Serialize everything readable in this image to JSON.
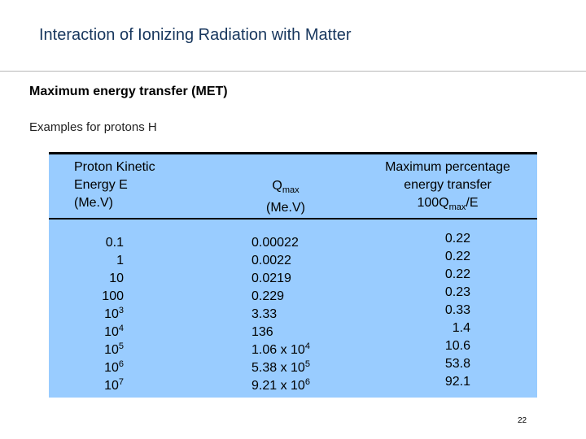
{
  "slide": {
    "title": "Interaction of Ionizing Radiation with Matter",
    "section_heading": "Maximum energy transfer (MET)",
    "subtitle": "Examples for protons H",
    "page_number": "22"
  },
  "table": {
    "header": {
      "col1": [
        "Proton Kinetic",
        "Energy E",
        "(Me.V)"
      ],
      "col2_symbol": "Q",
      "col2_sub": "max",
      "col2_unit": "(Me.V)",
      "col3_line1": "Maximum percentage",
      "col3_line2": "energy transfer",
      "col3_prefix": "100Q",
      "col3_sub": "max",
      "col3_suffix": "/E"
    },
    "rows": [
      {
        "e_base": "0.1",
        "e_exp": "",
        "q_base": "0.00022",
        "q_exp": "",
        "pct": "0.22"
      },
      {
        "e_base": "1",
        "e_exp": "",
        "q_base": "0.0022",
        "q_exp": "",
        "pct": "0.22"
      },
      {
        "e_base": "10",
        "e_exp": "",
        "q_base": "0.0219",
        "q_exp": "",
        "pct": "0.22"
      },
      {
        "e_base": "100",
        "e_exp": "",
        "q_base": "0.229",
        "q_exp": "",
        "pct": "0.23"
      },
      {
        "e_base": "10",
        "e_exp": "3",
        "q_base": "3.33",
        "q_exp": "",
        "pct": "0.33"
      },
      {
        "e_base": "10",
        "e_exp": "4",
        "q_base": "136",
        "q_exp": "",
        "pct": "1.4"
      },
      {
        "e_base": "10",
        "e_exp": "5",
        "q_base": "1.06 x 10",
        "q_exp": "4",
        "pct": "10.6"
      },
      {
        "e_base": "10",
        "e_exp": "6",
        "q_base": "5.38 x 10",
        "q_exp": "5",
        "pct": "53.8"
      },
      {
        "e_base": "10",
        "e_exp": "7",
        "q_base": "9.21 x 10",
        "q_exp": "6",
        "pct": "92.1"
      }
    ]
  },
  "colors": {
    "title": "#17365d",
    "table_fill": "#99ccff",
    "rules": "#000000"
  }
}
